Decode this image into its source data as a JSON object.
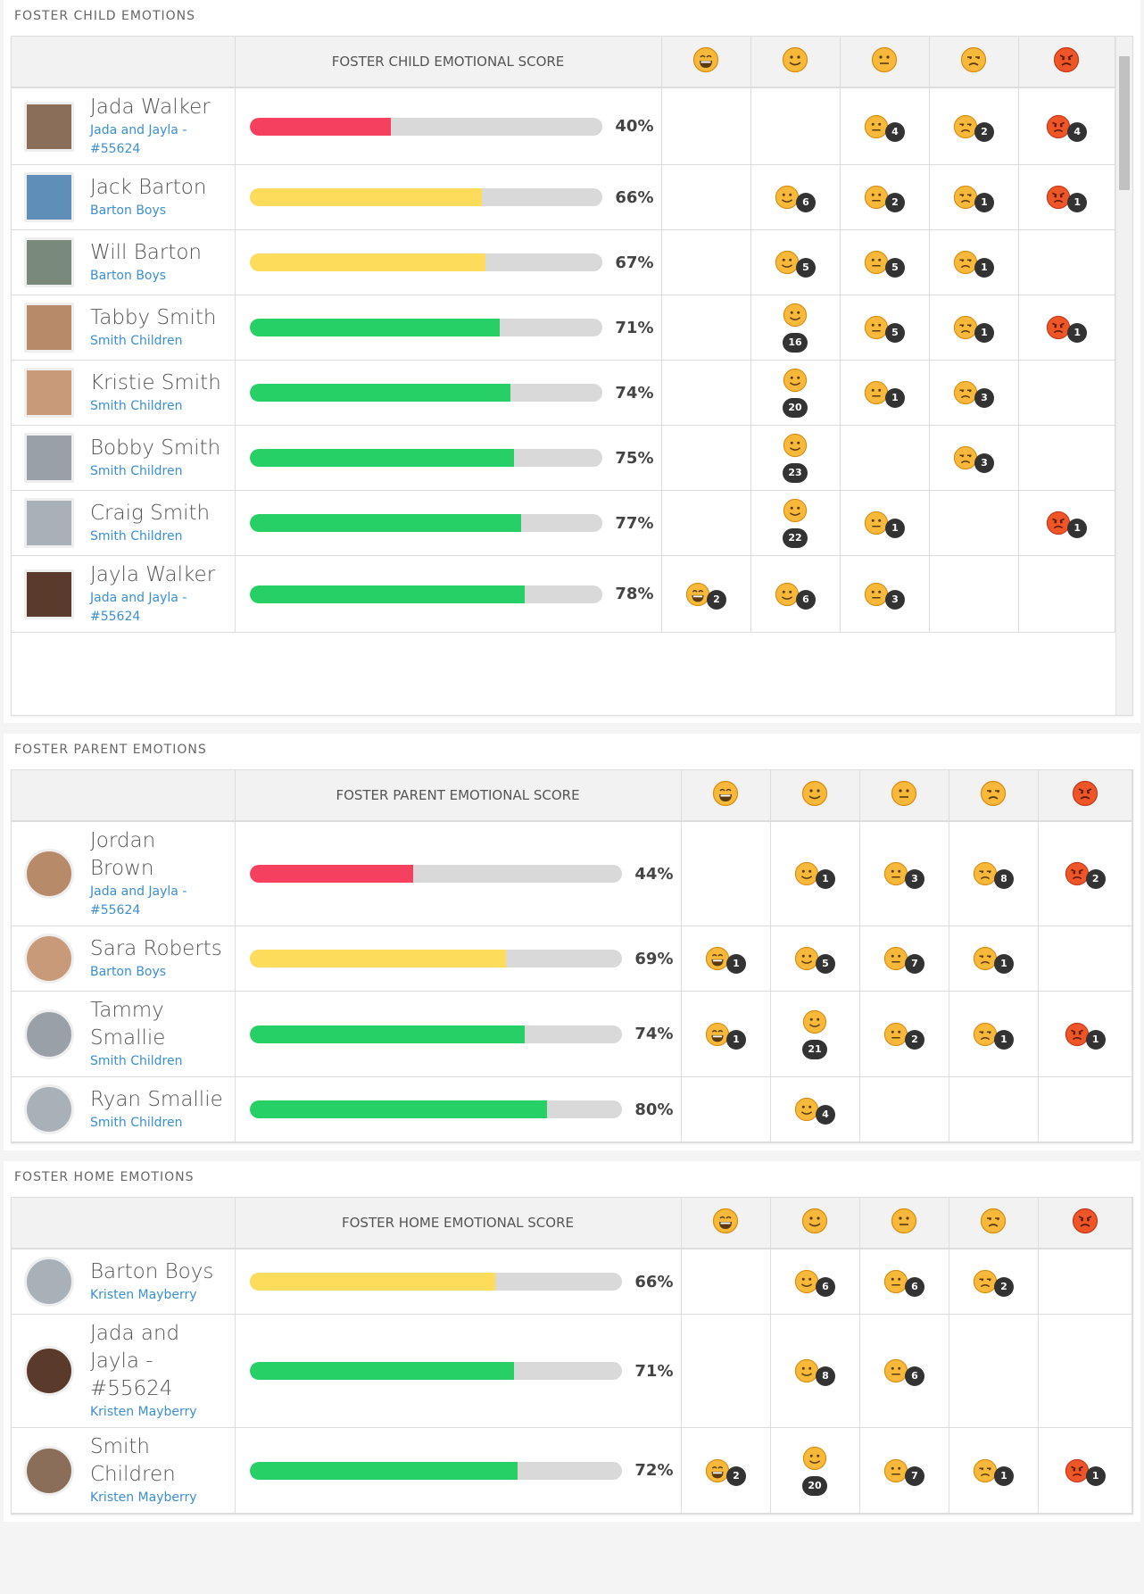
{
  "sections": [
    {
      "title": "FOSTER CHILD EMOTIONS",
      "score_header": "FOSTER CHILD EMOTIONAL SCORE",
      "rows": [
        {
          "name": "Jada Walker",
          "group": "Jada and Jayla - #55624",
          "score": 40,
          "score_label": "40%",
          "color": "#f5405f",
          "counts": [
            null,
            null,
            4,
            2,
            4
          ]
        },
        {
          "name": "Jack Barton",
          "group": "Barton Boys",
          "score": 66,
          "score_label": "66%",
          "color": "#fcdc5a",
          "counts": [
            null,
            6,
            2,
            1,
            1
          ]
        },
        {
          "name": "Will Barton",
          "group": "Barton Boys",
          "score": 67,
          "score_label": "67%",
          "color": "#fcdc5a",
          "counts": [
            null,
            5,
            5,
            1,
            null
          ]
        },
        {
          "name": "Tabby Smith",
          "group": "Smith Children",
          "score": 71,
          "score_label": "71%",
          "color": "#27cf67",
          "counts": [
            null,
            16,
            5,
            1,
            1
          ]
        },
        {
          "name": "Kristie Smith",
          "group": "Smith Children",
          "score": 74,
          "score_label": "74%",
          "color": "#27cf67",
          "counts": [
            null,
            20,
            1,
            3,
            null
          ]
        },
        {
          "name": "Bobby Smith",
          "group": "Smith Children",
          "score": 75,
          "score_label": "75%",
          "color": "#27cf67",
          "counts": [
            null,
            23,
            null,
            3,
            null
          ]
        },
        {
          "name": "Craig Smith",
          "group": "Smith Children",
          "score": 77,
          "score_label": "77%",
          "color": "#27cf67",
          "counts": [
            null,
            22,
            1,
            null,
            1
          ]
        },
        {
          "name": "Jayla Walker",
          "group": "Jada and Jayla - #55624",
          "score": 78,
          "score_label": "78%",
          "color": "#27cf67",
          "counts": [
            2,
            6,
            3,
            null,
            null
          ]
        }
      ]
    },
    {
      "title": "FOSTER PARENT EMOTIONS",
      "score_header": "FOSTER PARENT EMOTIONAL SCORE",
      "rows": [
        {
          "name": "Jordan Brown",
          "group": "Jada and Jayla - #55624",
          "score": 44,
          "score_label": "44%",
          "color": "#f5405f",
          "counts": [
            null,
            1,
            3,
            8,
            2
          ]
        },
        {
          "name": "Sara Roberts",
          "group": "Barton Boys",
          "score": 69,
          "score_label": "69%",
          "color": "#fcdc5a",
          "counts": [
            1,
            5,
            7,
            1,
            null
          ]
        },
        {
          "name": "Tammy Smallie",
          "group": "Smith Children",
          "score": 74,
          "score_label": "74%",
          "color": "#27cf67",
          "counts": [
            1,
            21,
            2,
            1,
            1
          ]
        },
        {
          "name": "Ryan Smallie",
          "group": "Smith Children",
          "score": 80,
          "score_label": "80%",
          "color": "#27cf67",
          "counts": [
            null,
            4,
            null,
            null,
            null
          ]
        }
      ]
    },
    {
      "title": "FOSTER HOME EMOTIONS",
      "score_header": "FOSTER HOME EMOTIONAL SCORE",
      "rows": [
        {
          "name": "Barton Boys",
          "group": "Kristen Mayberry",
          "score": 66,
          "score_label": "66%",
          "color": "#fcdc5a",
          "counts": [
            null,
            6,
            6,
            2,
            null
          ]
        },
        {
          "name": "Jada and Jayla - #55624",
          "group": "Kristen Mayberry",
          "score": 71,
          "score_label": "71%",
          "color": "#27cf67",
          "counts": [
            null,
            8,
            6,
            null,
            null
          ]
        },
        {
          "name": "Smith Children",
          "group": "Kristen Mayberry",
          "score": 72,
          "score_label": "72%",
          "color": "#27cf67",
          "counts": [
            2,
            20,
            7,
            1,
            1
          ]
        }
      ]
    }
  ]
}
